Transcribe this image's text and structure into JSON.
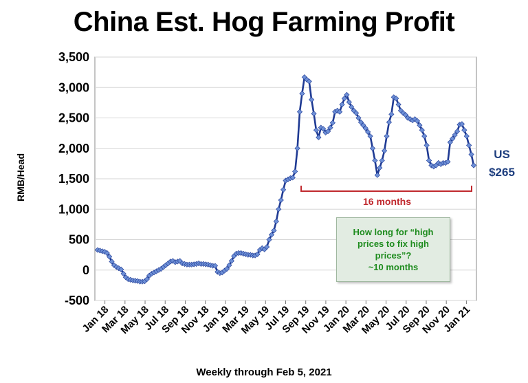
{
  "chart_data": {
    "type": "line",
    "title": "China Est. Hog Farming Profit",
    "xlabel": "Weekly through Feb 5, 2021",
    "ylabel": "RMB/Head",
    "ylim": [
      -500,
      3500
    ],
    "yticks": [
      -500,
      0,
      500,
      1000,
      1500,
      2000,
      2500,
      3000,
      3500
    ],
    "ytick_labels": [
      "-500",
      "0",
      "500",
      "1,000",
      "1,500",
      "2,000",
      "2,500",
      "3,000",
      "3,500"
    ],
    "xtick_labels": [
      "Jan 18",
      "Mar 18",
      "May 18",
      "Jul 18",
      "Sep 18",
      "Nov 18",
      "Jan 19",
      "Mar 19",
      "May 19",
      "Jul 19",
      "Sep 19",
      "Nov 19",
      "Jan 20",
      "Mar 20",
      "May 20",
      "Jul 20",
      "Sep 20",
      "Nov 20",
      "Jan 21"
    ],
    "grid": true,
    "series": [
      {
        "color": "#1f3a93",
        "values": [
          330,
          320,
          310,
          300,
          280,
          220,
          140,
          80,
          50,
          30,
          10,
          -60,
          -120,
          -150,
          -160,
          -170,
          -175,
          -180,
          -190,
          -190,
          -185,
          -150,
          -90,
          -60,
          -40,
          -20,
          0,
          20,
          50,
          80,
          110,
          140,
          150,
          130,
          140,
          150,
          110,
          100,
          90,
          90,
          90,
          95,
          100,
          110,
          100,
          100,
          95,
          90,
          80,
          70,
          70,
          -30,
          -50,
          -40,
          -10,
          20,
          80,
          150,
          230,
          270,
          280,
          280,
          270,
          260,
          250,
          250,
          240,
          240,
          260,
          330,
          360,
          340,
          380,
          500,
          580,
          650,
          800,
          1000,
          1150,
          1320,
          1470,
          1490,
          1510,
          1520,
          1620,
          2000,
          2600,
          2900,
          3170,
          3130,
          3100,
          2800,
          2570,
          2300,
          2180,
          2340,
          2320,
          2260,
          2280,
          2340,
          2420,
          2600,
          2620,
          2600,
          2720,
          2820,
          2880,
          2760,
          2680,
          2620,
          2580,
          2500,
          2430,
          2380,
          2330,
          2270,
          2200,
          2000,
          1800,
          1560,
          1680,
          1800,
          1960,
          2200,
          2430,
          2560,
          2840,
          2820,
          2720,
          2620,
          2580,
          2550,
          2500,
          2480,
          2460,
          2480,
          2450,
          2380,
          2300,
          2200,
          2050,
          1800,
          1720,
          1700,
          1720,
          1760,
          1740,
          1760,
          1760,
          1780,
          2100,
          2160,
          2220,
          2280,
          2390,
          2400,
          2300,
          2200,
          2050,
          1900,
          1720
        ],
        "point_color": "#6d8fd6"
      }
    ],
    "annotations": {
      "us_value": "US\n$265",
      "bracket_label": "16 months",
      "bracket_color": "#c0282d",
      "note_text": "How long for “high prices to fix high prices”?\n~10 months",
      "note_color": "#1f8c1f",
      "note_bg": "#e2ece2"
    }
  }
}
